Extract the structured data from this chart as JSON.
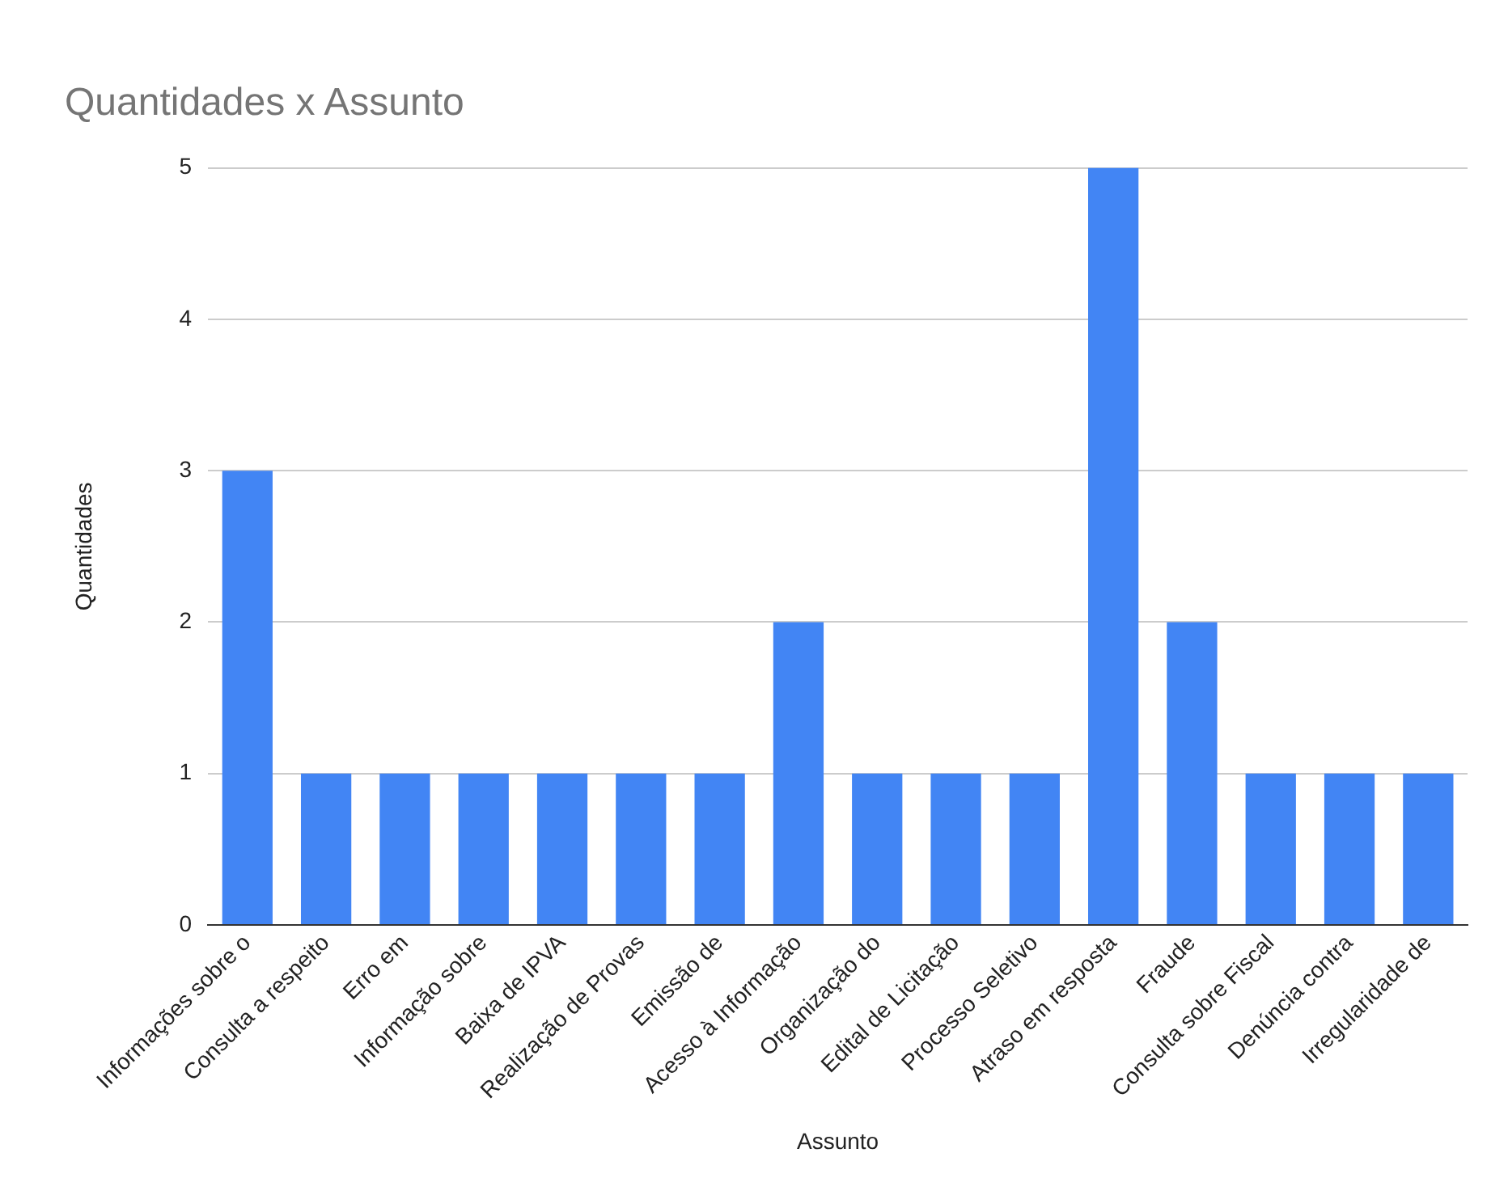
{
  "chart_data": {
    "type": "bar",
    "title": "Quantidades x Assunto",
    "xlabel": "Assunto",
    "ylabel": "Quantidades",
    "categories": [
      "Informações sobre o",
      "Consulta a respeito",
      "Erro em",
      "Informação sobre",
      "Baixa de IPVA",
      "Realização de Provas",
      "Emissão de",
      "Acesso à Informação",
      "Organização do",
      "Edital de Licitação",
      "Processo Seletivo",
      "Atraso em resposta",
      "Fraude",
      "Consulta sobre Fiscal",
      "Denúncia contra",
      "Irregularidade de"
    ],
    "values": [
      3,
      1,
      1,
      1,
      1,
      1,
      1,
      2,
      1,
      1,
      1,
      5,
      2,
      1,
      1,
      1
    ],
    "color": "#4285f4",
    "ylim": [
      0,
      5
    ],
    "yticks": [
      0,
      1,
      2,
      3,
      4,
      5
    ],
    "grid": "y",
    "legend": false
  }
}
